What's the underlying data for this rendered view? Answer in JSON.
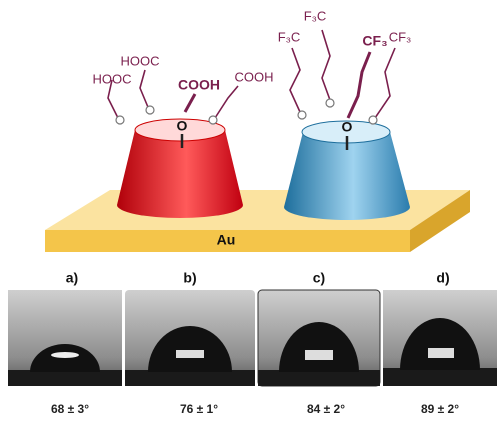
{
  "figure": {
    "substrate": "Au",
    "acid_groups": [
      "HOOC",
      "HOOC",
      "COOH",
      "COOH"
    ],
    "fluoro_groups": [
      "F₃C",
      "F₃C",
      "CF₃",
      "CF₃"
    ],
    "anchor_atom": "O",
    "panels": [
      {
        "label": "a)",
        "angle": "68 ± 3°"
      },
      {
        "label": "b)",
        "angle": "76 ± 1°"
      },
      {
        "label": "c)",
        "angle": "84 ± 2°"
      },
      {
        "label": "d)",
        "angle": "89 ± 2°"
      }
    ]
  }
}
